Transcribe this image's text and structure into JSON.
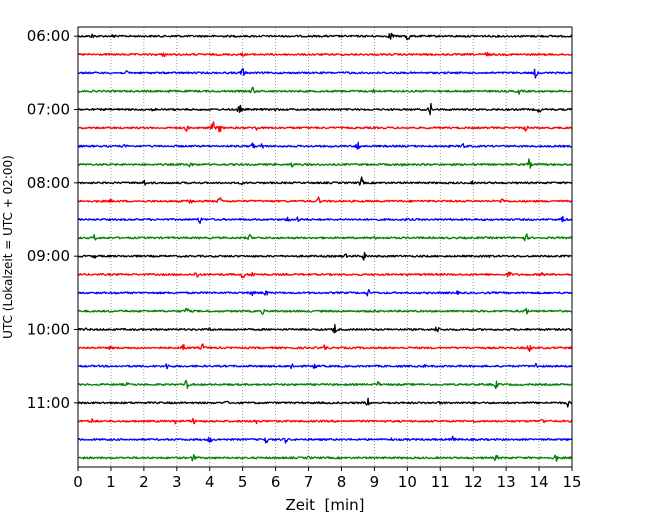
{
  "chart_data": {
    "type": "line",
    "title": "",
    "xlabel": "Zeit  [min]",
    "ylabel": "UTC (Lokalzeit = UTC + 02:00)",
    "xlim": [
      0,
      15
    ],
    "xticks": [
      0,
      1,
      2,
      3,
      4,
      5,
      6,
      7,
      8,
      9,
      10,
      11,
      12,
      13,
      14,
      15
    ],
    "ylim": [
      "06:00",
      "12:00"
    ],
    "yticks": [
      "06:00",
      "07:00",
      "08:00",
      "09:00",
      "10:00",
      "11:00"
    ],
    "x_grid": true,
    "row_minutes": 15,
    "color_cycle": [
      "#000000",
      "#ff0000",
      "#0000ff",
      "#008000"
    ],
    "traces": [
      {
        "start": "06:00",
        "color": "#000000",
        "events": [
          [
            0.45,
            0.3
          ],
          [
            1.1,
            0.25
          ],
          [
            3.0,
            0.2
          ],
          [
            9.5,
            0.9
          ],
          [
            10.0,
            1.0
          ]
        ]
      },
      {
        "start": "06:15",
        "color": "#ff0000",
        "events": [
          [
            2.6,
            0.3
          ],
          [
            12.4,
            0.4
          ],
          [
            5.0,
            0.15
          ]
        ]
      },
      {
        "start": "06:30",
        "color": "#0000ff",
        "events": [
          [
            5.0,
            0.8
          ],
          [
            13.9,
            0.7
          ],
          [
            1.5,
            0.2
          ],
          [
            8.2,
            0.15
          ]
        ]
      },
      {
        "start": "06:45",
        "color": "#008000",
        "events": [
          [
            5.3,
            0.6
          ],
          [
            13.4,
            0.5
          ],
          [
            9.0,
            0.2
          ],
          [
            2.8,
            0.15
          ]
        ]
      },
      {
        "start": "07:00",
        "color": "#000000",
        "events": [
          [
            4.9,
            0.7
          ],
          [
            10.7,
            0.9
          ],
          [
            14.0,
            0.4
          ],
          [
            2.3,
            0.2
          ],
          [
            6.0,
            0.15
          ]
        ]
      },
      {
        "start": "07:15",
        "color": "#ff0000",
        "events": [
          [
            3.3,
            0.4
          ],
          [
            4.1,
            0.9
          ],
          [
            4.3,
            0.6
          ],
          [
            5.4,
            0.3
          ],
          [
            13.6,
            0.4
          ]
        ]
      },
      {
        "start": "07:30",
        "color": "#0000ff",
        "events": [
          [
            5.3,
            0.5
          ],
          [
            5.6,
            0.4
          ],
          [
            8.5,
            0.7
          ],
          [
            11.7,
            0.4
          ],
          [
            1.4,
            0.15
          ]
        ]
      },
      {
        "start": "07:45",
        "color": "#008000",
        "events": [
          [
            3.4,
            0.5
          ],
          [
            6.5,
            0.3
          ],
          [
            13.7,
            0.7
          ],
          [
            9.8,
            0.2
          ]
        ]
      },
      {
        "start": "08:00",
        "color": "#000000",
        "events": [
          [
            2.0,
            0.4
          ],
          [
            8.6,
            0.8
          ],
          [
            5.0,
            0.15
          ],
          [
            12.0,
            0.15
          ]
        ]
      },
      {
        "start": "08:15",
        "color": "#ff0000",
        "events": [
          [
            3.4,
            0.5
          ],
          [
            4.3,
            0.6
          ],
          [
            7.3,
            0.5
          ],
          [
            12.9,
            0.5
          ],
          [
            1.0,
            0.15
          ]
        ]
      },
      {
        "start": "08:30",
        "color": "#0000ff",
        "events": [
          [
            3.7,
            0.5
          ],
          [
            6.4,
            0.5
          ],
          [
            6.7,
            0.4
          ],
          [
            14.7,
            0.6
          ],
          [
            10.0,
            0.15
          ]
        ]
      },
      {
        "start": "08:45",
        "color": "#008000",
        "events": [
          [
            0.5,
            0.4
          ],
          [
            5.2,
            0.5
          ],
          [
            13.6,
            0.6
          ],
          [
            9.0,
            0.15
          ]
        ]
      },
      {
        "start": "09:00",
        "color": "#000000",
        "events": [
          [
            8.1,
            0.3
          ],
          [
            8.7,
            0.7
          ],
          [
            0.5,
            0.2
          ],
          [
            12.5,
            0.15
          ]
        ]
      },
      {
        "start": "09:15",
        "color": "#ff0000",
        "events": [
          [
            3.6,
            0.5
          ],
          [
            5.0,
            0.6
          ],
          [
            5.3,
            0.4
          ],
          [
            13.1,
            0.5
          ],
          [
            14.1,
            0.3
          ]
        ]
      },
      {
        "start": "09:30",
        "color": "#0000ff",
        "events": [
          [
            5.3,
            0.5
          ],
          [
            5.7,
            0.4
          ],
          [
            8.8,
            0.5
          ],
          [
            1.2,
            0.15
          ],
          [
            11.5,
            0.15
          ]
        ]
      },
      {
        "start": "09:45",
        "color": "#008000",
        "events": [
          [
            3.3,
            0.6
          ],
          [
            5.6,
            0.3
          ],
          [
            13.6,
            0.6
          ],
          [
            9.0,
            0.15
          ]
        ]
      },
      {
        "start": "10:00",
        "color": "#000000",
        "events": [
          [
            7.8,
            0.8
          ],
          [
            10.9,
            0.6
          ],
          [
            0.2,
            0.2
          ],
          [
            4.0,
            0.15
          ]
        ]
      },
      {
        "start": "10:15",
        "color": "#ff0000",
        "events": [
          [
            3.2,
            0.7
          ],
          [
            3.8,
            0.6
          ],
          [
            7.5,
            0.4
          ],
          [
            13.7,
            0.5
          ],
          [
            1.0,
            0.15
          ]
        ]
      },
      {
        "start": "10:30",
        "color": "#0000ff",
        "events": [
          [
            2.7,
            0.4
          ],
          [
            6.5,
            0.5
          ],
          [
            7.2,
            0.4
          ],
          [
            13.9,
            0.4
          ],
          [
            10.5,
            0.15
          ]
        ]
      },
      {
        "start": "10:45",
        "color": "#008000",
        "events": [
          [
            3.3,
            0.6
          ],
          [
            9.1,
            0.4
          ],
          [
            12.7,
            0.5
          ],
          [
            1.5,
            0.15
          ]
        ]
      },
      {
        "start": "11:00",
        "color": "#000000",
        "events": [
          [
            8.8,
            0.6
          ],
          [
            14.9,
            0.7
          ],
          [
            4.5,
            0.2
          ],
          [
            11.0,
            0.15
          ]
        ]
      },
      {
        "start": "11:15",
        "color": "#ff0000",
        "events": [
          [
            0.4,
            0.4
          ],
          [
            3.0,
            0.5
          ],
          [
            3.5,
            0.4
          ],
          [
            5.4,
            0.5
          ],
          [
            14.1,
            0.4
          ],
          [
            12.0,
            0.15
          ]
        ]
      },
      {
        "start": "11:30",
        "color": "#0000ff",
        "events": [
          [
            4.0,
            0.5
          ],
          [
            5.7,
            0.6
          ],
          [
            6.3,
            0.4
          ],
          [
            11.4,
            0.5
          ],
          [
            9.5,
            0.15
          ]
        ]
      },
      {
        "start": "11:45",
        "color": "#008000",
        "events": [
          [
            3.5,
            0.5
          ],
          [
            12.7,
            0.4
          ],
          [
            14.5,
            0.6
          ],
          [
            7.0,
            0.15
          ]
        ]
      }
    ]
  }
}
